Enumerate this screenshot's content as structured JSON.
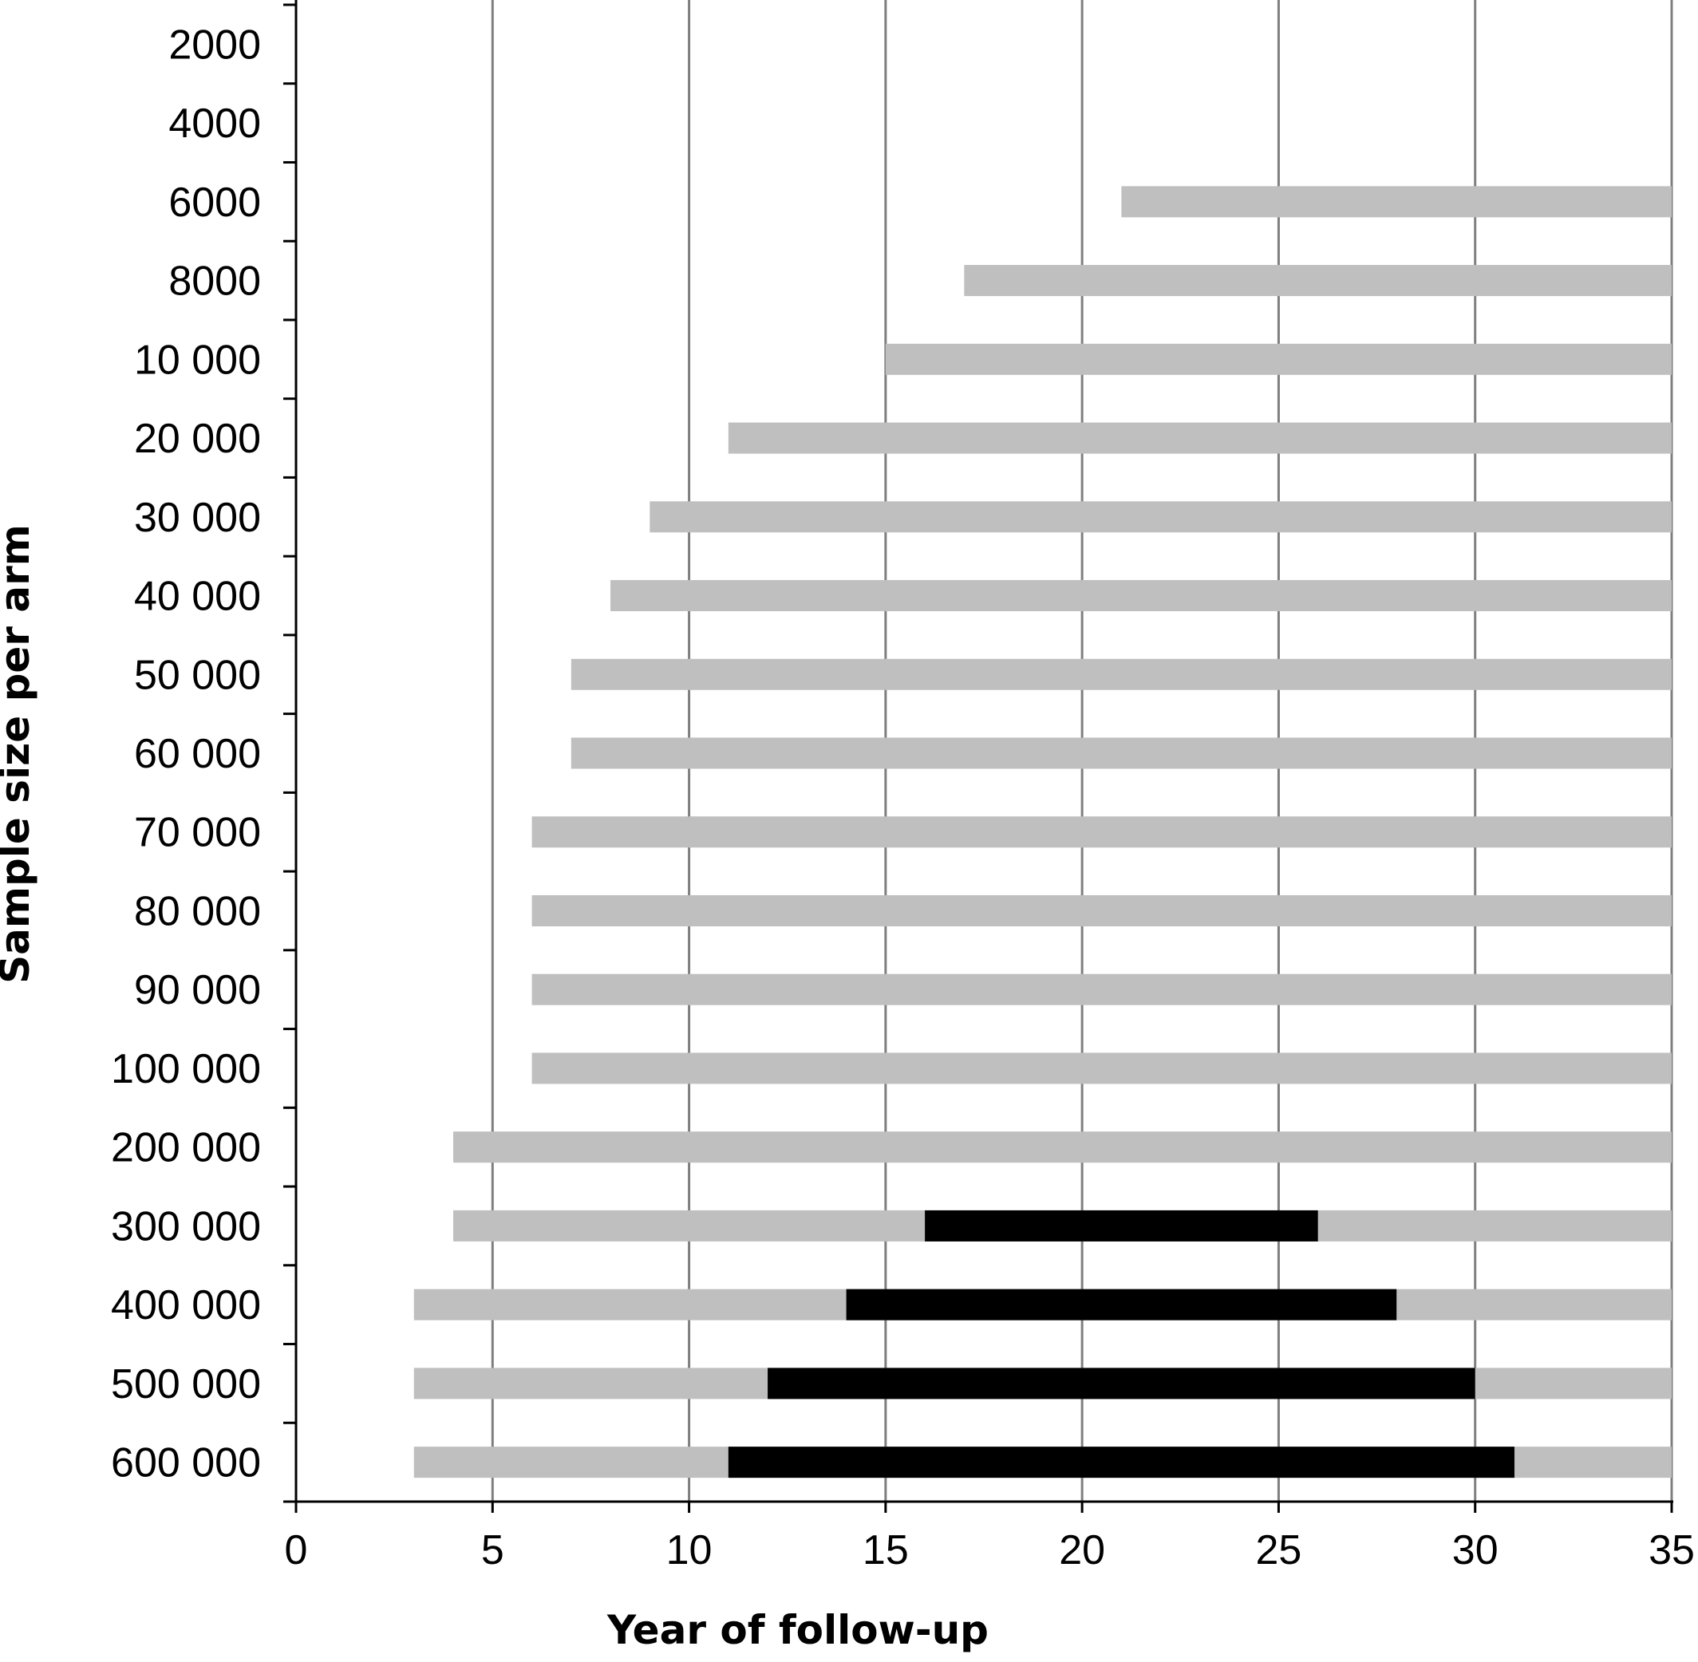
{
  "chart_data": {
    "type": "bar",
    "subtype": "horizontal-range",
    "xlabel": "Year of follow-up",
    "ylabel": "Sample size per arm",
    "xlim": [
      0,
      35
    ],
    "xticks": [
      "0",
      "5",
      "10",
      "15",
      "20",
      "25",
      "30",
      "35"
    ],
    "grid": "vertical",
    "colors": {
      "light_range": "#bfbfbf",
      "dark_range": "#000000",
      "gridline": "#7f7f7f",
      "axis": "#000000"
    },
    "categories": [
      "2000",
      "4000",
      "6000",
      "8000",
      "10 000",
      "20 000",
      "30 000",
      "40 000",
      "50 000",
      "60 000",
      "70 000",
      "80 000",
      "90 000",
      "100 000",
      "200 000",
      "300 000",
      "400 000",
      "500 000",
      "600 000"
    ],
    "series": [
      {
        "color": "#bfbfbf",
        "ranges": [
          null,
          null,
          [
            21,
            35
          ],
          [
            17,
            35
          ],
          [
            15,
            35
          ],
          [
            11,
            35
          ],
          [
            9,
            35
          ],
          [
            8,
            35
          ],
          [
            7,
            35
          ],
          [
            7,
            35
          ],
          [
            6,
            35
          ],
          [
            6,
            35
          ],
          [
            6,
            35
          ],
          [
            6,
            35
          ],
          [
            4,
            35
          ],
          [
            4,
            35
          ],
          [
            3,
            35
          ],
          [
            3,
            35
          ],
          [
            3,
            35
          ]
        ]
      },
      {
        "color": "#000000",
        "ranges": [
          null,
          null,
          null,
          null,
          null,
          null,
          null,
          null,
          null,
          null,
          null,
          null,
          null,
          null,
          null,
          [
            16,
            26
          ],
          [
            14,
            28
          ],
          [
            12,
            30
          ],
          [
            11,
            31
          ]
        ]
      }
    ]
  }
}
